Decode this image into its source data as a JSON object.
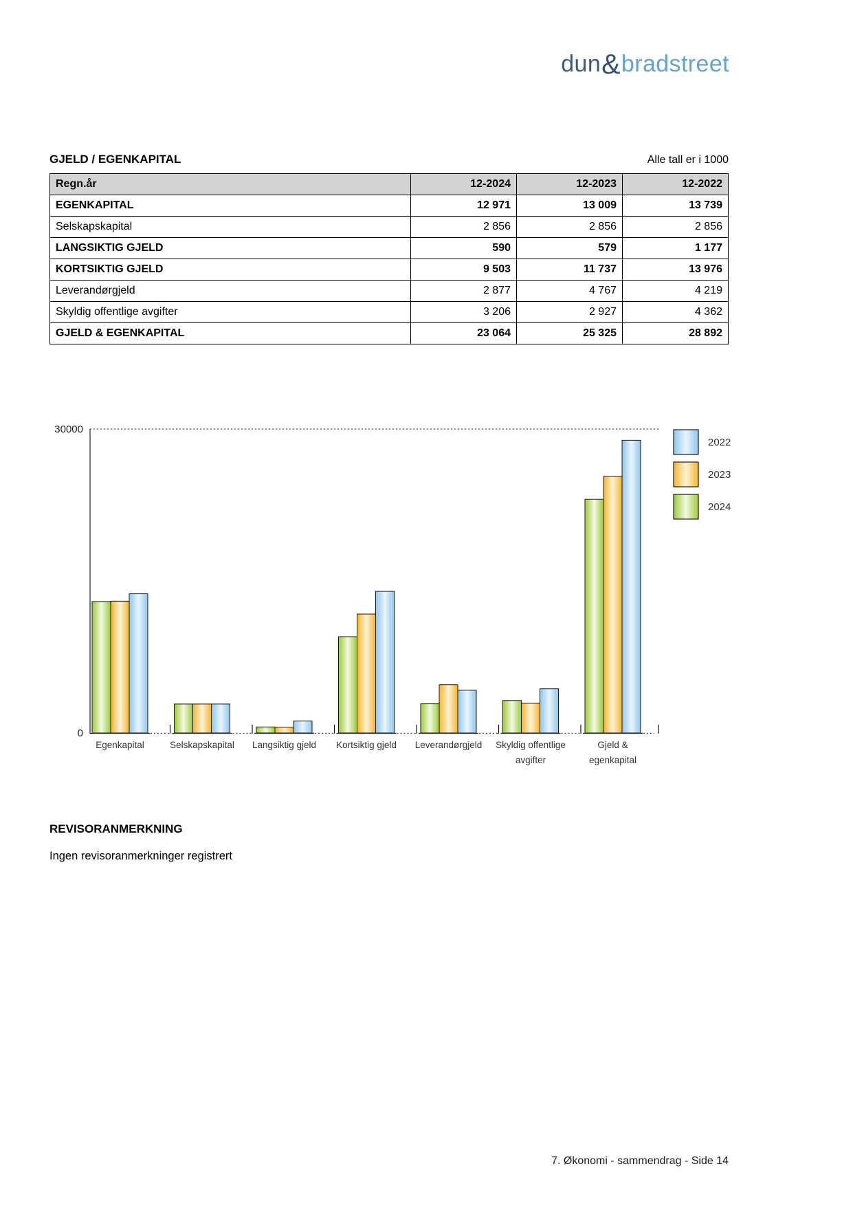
{
  "logo": {
    "dun": "dun",
    "amp": "&",
    "bradstreet": "bradstreet"
  },
  "section": {
    "title": "GJELD / EGENKAPITAL",
    "units_note": "Alle tall er i 1000"
  },
  "table": {
    "header": {
      "label": "Regn.år",
      "cols": [
        "12-2024",
        "12-2023",
        "12-2022"
      ]
    },
    "rows": [
      {
        "label": "EGENKAPITAL",
        "bold": true,
        "values": [
          "12 971",
          "13 009",
          "13 739"
        ]
      },
      {
        "label": "Selskapskapital",
        "bold": false,
        "values": [
          "2 856",
          "2 856",
          "2 856"
        ]
      },
      {
        "label": "LANGSIKTIG GJELD",
        "bold": true,
        "values": [
          "590",
          "579",
          "1 177"
        ]
      },
      {
        "label": "KORTSIKTIG GJELD",
        "bold": true,
        "values": [
          "9 503",
          "11 737",
          "13 976"
        ]
      },
      {
        "label": "Leverandørgjeld",
        "bold": false,
        "values": [
          "2 877",
          "4 767",
          "4 219"
        ]
      },
      {
        "label": "Skyldig offentlige avgifter",
        "bold": false,
        "values": [
          "3 206",
          "2 927",
          "4 362"
        ]
      },
      {
        "label": "GJELD & EGENKAPITAL",
        "bold": true,
        "values": [
          "23 064",
          "25 325",
          "28 892"
        ]
      }
    ]
  },
  "chart_data": {
    "type": "bar",
    "title": "",
    "xlabel": "",
    "ylabel": "",
    "ylim": [
      0,
      30000
    ],
    "yticks": [
      "0",
      "30000"
    ],
    "grid": "dashed line at 30000 only",
    "legend_position": "right-top",
    "categories": [
      "Egenkapital",
      "Selskapskapital",
      "Langsiktig gjeld",
      "Kortsiktig gjeld",
      "Leverandørgjeld",
      "Skyldig offentlige\navgifter",
      "Gjeld &\negenkapital"
    ],
    "bar_order_note": "bars per group left to right: 2024, 2023, 2022",
    "series": [
      {
        "name": "2024",
        "color_edge": "#9dcb3b",
        "color_light": "#f3f9e2",
        "values": [
          12971,
          2856,
          590,
          9503,
          2877,
          3206,
          23064
        ]
      },
      {
        "name": "2023",
        "color_edge": "#f7b42d",
        "color_light": "#fdf3d5",
        "values": [
          13009,
          2856,
          579,
          11737,
          4767,
          2927,
          25325
        ]
      },
      {
        "name": "2022",
        "color_edge": "#8fc6ec",
        "color_light": "#eaf5fd",
        "values": [
          13739,
          2856,
          1177,
          13976,
          4219,
          4362,
          28892
        ]
      }
    ],
    "legend_order": [
      "2022",
      "2023",
      "2024"
    ]
  },
  "revisor": {
    "heading": "REVISORANMERKNING",
    "body": "Ingen revisoranmerkninger registrert"
  },
  "footer": {
    "text": "7. Økonomi - sammendrag - Side 14"
  }
}
